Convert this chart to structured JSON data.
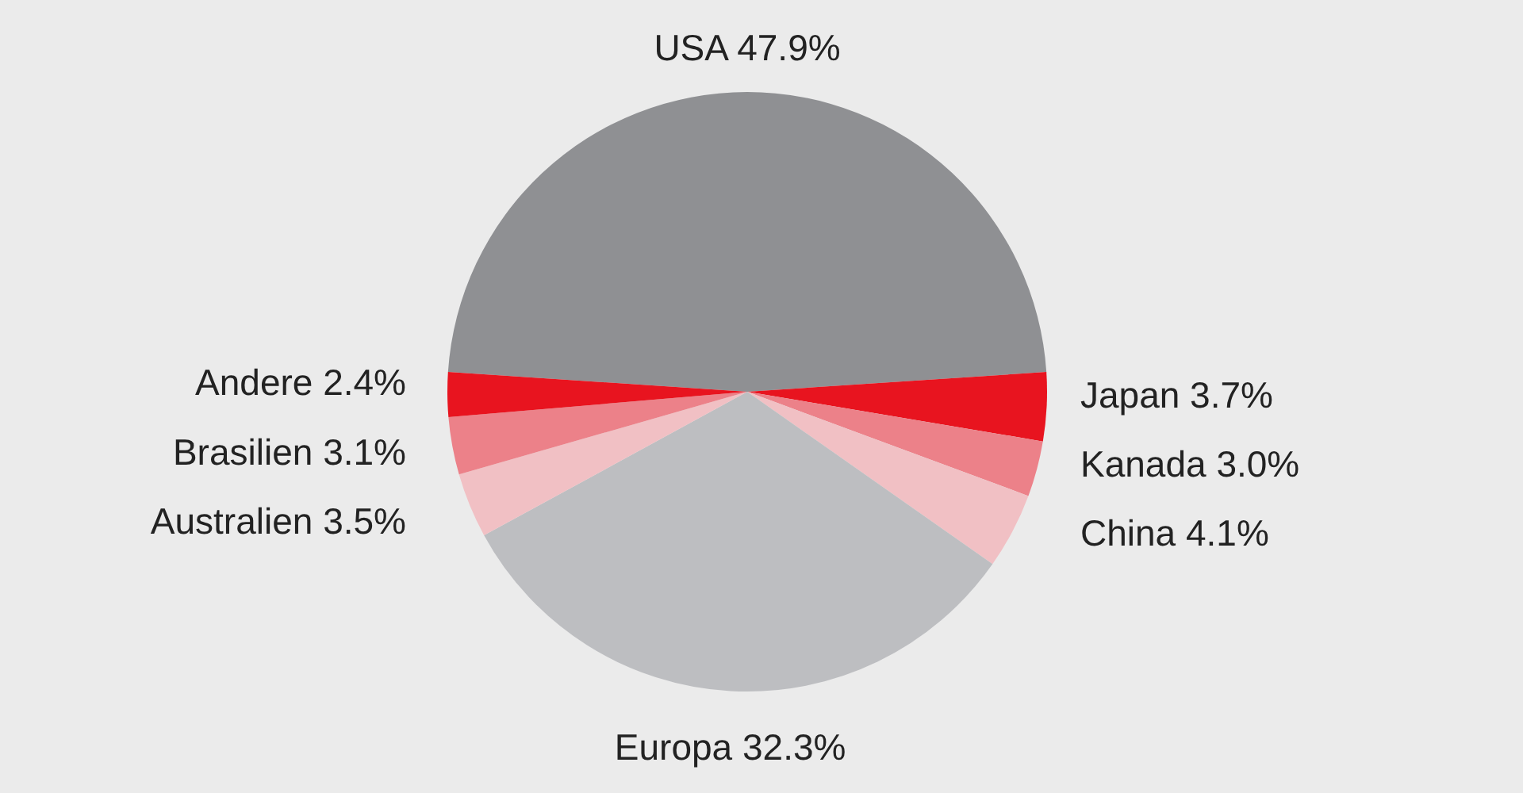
{
  "chart_data": {
    "type": "pie",
    "categories": [
      "USA",
      "Japan",
      "Kanada",
      "China",
      "Europa",
      "Australien",
      "Brasilien",
      "Andere"
    ],
    "values": [
      47.9,
      3.7,
      3.0,
      4.1,
      32.3,
      3.5,
      3.1,
      2.4
    ],
    "value_labels": [
      "47.9%",
      "3.7%",
      "3.0%",
      "4.1%",
      "32.3%",
      "3.5%",
      "3.1%",
      "2.4%"
    ],
    "colors": [
      "#8f9093",
      "#e8141f",
      "#ec8189",
      "#f1c0c4",
      "#bdbec1",
      "#f1c0c4",
      "#ec8189",
      "#e8141f"
    ],
    "legend": false
  }
}
